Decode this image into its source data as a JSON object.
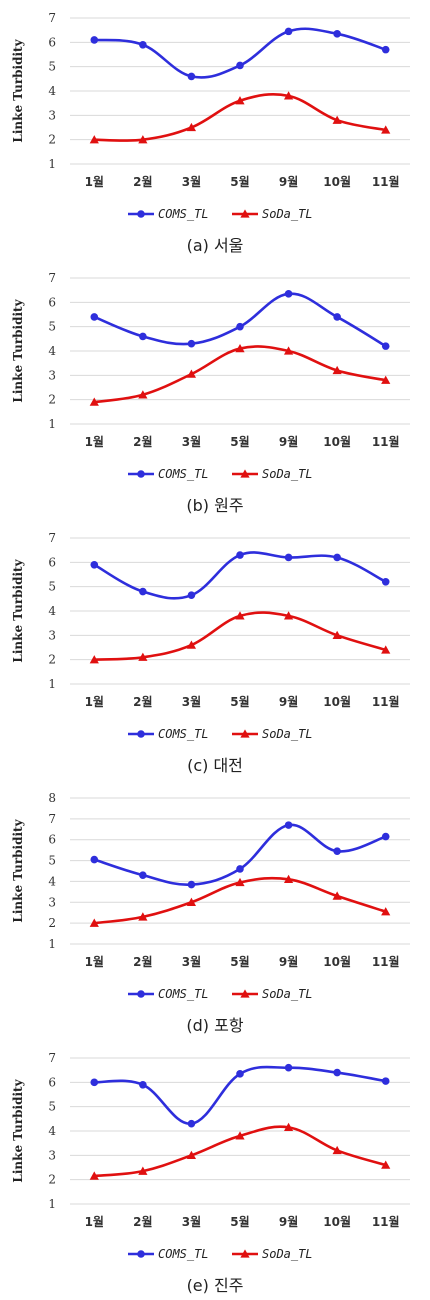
{
  "chart_data": [
    {
      "type": "line",
      "caption": "(a) 서울",
      "ylabel": "Linke Turbidity",
      "categories": [
        "1월",
        "2월",
        "3월",
        "5월",
        "9월",
        "10월",
        "11월"
      ],
      "ylim": [
        1,
        7
      ],
      "yticks": [
        1,
        2,
        3,
        4,
        5,
        6,
        7
      ],
      "grid": true,
      "legend": "bottom",
      "series": [
        {
          "name": "COMS_TL",
          "color": "#2e2edc",
          "marker": "circle",
          "values": [
            6.1,
            5.9,
            4.6,
            5.05,
            6.45,
            6.35,
            5.7
          ]
        },
        {
          "name": "SoDa_TL",
          "color": "#e01010",
          "marker": "triangle",
          "values": [
            2.0,
            2.0,
            2.5,
            3.6,
            3.8,
            2.8,
            2.4
          ]
        }
      ]
    },
    {
      "type": "line",
      "caption": "(b) 원주",
      "ylabel": "Linke Turbidity",
      "categories": [
        "1월",
        "2월",
        "3월",
        "5월",
        "9월",
        "10월",
        "11월"
      ],
      "ylim": [
        1,
        7
      ],
      "yticks": [
        1,
        2,
        3,
        4,
        5,
        6,
        7
      ],
      "grid": true,
      "legend": "bottom",
      "series": [
        {
          "name": "COMS_TL",
          "color": "#2e2edc",
          "marker": "circle",
          "values": [
            5.4,
            4.6,
            4.3,
            5.0,
            6.35,
            5.4,
            4.2
          ]
        },
        {
          "name": "SoDa_TL",
          "color": "#e01010",
          "marker": "triangle",
          "values": [
            1.9,
            2.2,
            3.05,
            4.1,
            4.0,
            3.2,
            2.8
          ]
        }
      ]
    },
    {
      "type": "line",
      "caption": "(c) 대전",
      "ylabel": "Linke Turbidity",
      "categories": [
        "1월",
        "2월",
        "3월",
        "5월",
        "9월",
        "10월",
        "11월"
      ],
      "ylim": [
        1,
        7
      ],
      "yticks": [
        1,
        2,
        3,
        4,
        5,
        6,
        7
      ],
      "grid": true,
      "legend": "bottom",
      "series": [
        {
          "name": "COMS_TL",
          "color": "#2e2edc",
          "marker": "circle",
          "values": [
            5.9,
            4.8,
            4.65,
            6.3,
            6.2,
            6.2,
            5.2
          ]
        },
        {
          "name": "SoDa_TL",
          "color": "#e01010",
          "marker": "triangle",
          "values": [
            2.0,
            2.1,
            2.6,
            3.8,
            3.8,
            3.0,
            2.4
          ]
        }
      ]
    },
    {
      "type": "line",
      "caption": "(d) 포항",
      "ylabel": "Linke Turbidity",
      "categories": [
        "1월",
        "2월",
        "3월",
        "5월",
        "9월",
        "10월",
        "11월"
      ],
      "ylim": [
        1,
        8
      ],
      "yticks": [
        1,
        2,
        3,
        4,
        5,
        6,
        7,
        8
      ],
      "grid": true,
      "legend": "bottom",
      "series": [
        {
          "name": "COMS_TL",
          "color": "#2e2edc",
          "marker": "circle",
          "values": [
            5.05,
            4.3,
            3.85,
            4.6,
            6.7,
            5.45,
            6.15
          ]
        },
        {
          "name": "SoDa_TL",
          "color": "#e01010",
          "marker": "triangle",
          "values": [
            2.0,
            2.3,
            3.0,
            3.95,
            4.1,
            3.3,
            2.55
          ]
        }
      ]
    },
    {
      "type": "line",
      "caption": "(e) 진주",
      "ylabel": "Linke Turbidity",
      "categories": [
        "1월",
        "2월",
        "3월",
        "5월",
        "9월",
        "10월",
        "11월"
      ],
      "ylim": [
        1,
        7
      ],
      "yticks": [
        1,
        2,
        3,
        4,
        5,
        6,
        7
      ],
      "grid": true,
      "legend": "bottom",
      "series": [
        {
          "name": "COMS_TL",
          "color": "#2e2edc",
          "marker": "circle",
          "values": [
            6.0,
            5.9,
            4.3,
            6.35,
            6.6,
            6.4,
            6.05
          ]
        },
        {
          "name": "SoDa_TL",
          "color": "#e01010",
          "marker": "triangle",
          "values": [
            2.15,
            2.35,
            3.0,
            3.8,
            4.15,
            3.2,
            2.6
          ]
        }
      ]
    }
  ]
}
